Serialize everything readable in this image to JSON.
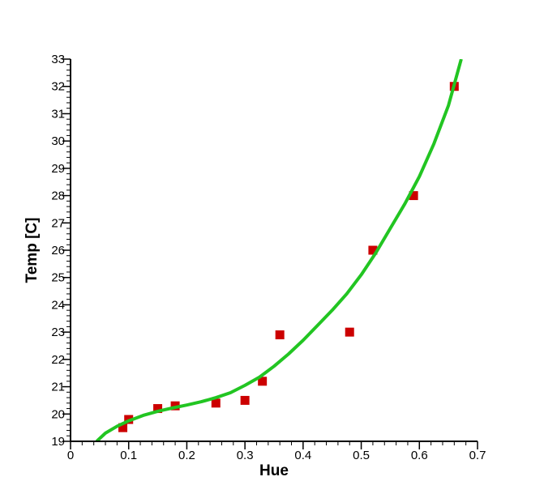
{
  "chart_data": {
    "type": "scatter",
    "xlabel": "Hue",
    "ylabel": "Temp [C]",
    "xlim": [
      0,
      0.7
    ],
    "ylim": [
      19,
      33
    ],
    "xticks": [
      "0",
      "0.1",
      "0.2",
      "0.3",
      "0.4",
      "0.5",
      "0.6",
      "0.7"
    ],
    "yticks": [
      "19",
      "20",
      "21",
      "22",
      "23",
      "24",
      "25",
      "26",
      "27",
      "28",
      "29",
      "30",
      "31",
      "32",
      "33"
    ],
    "grid": false,
    "series": [
      {
        "type": "scatter",
        "marker": "square",
        "color": "#cc0000",
        "points": [
          {
            "x": 0.09,
            "y": 19.5
          },
          {
            "x": 0.1,
            "y": 19.8
          },
          {
            "x": 0.15,
            "y": 20.2
          },
          {
            "x": 0.18,
            "y": 20.3
          },
          {
            "x": 0.25,
            "y": 20.4
          },
          {
            "x": 0.3,
            "y": 20.5
          },
          {
            "x": 0.33,
            "y": 21.2
          },
          {
            "x": 0.36,
            "y": 22.9
          },
          {
            "x": 0.48,
            "y": 23.0
          },
          {
            "x": 0.52,
            "y": 26.0
          },
          {
            "x": 0.59,
            "y": 28.0
          },
          {
            "x": 0.66,
            "y": 32.0
          }
        ]
      },
      {
        "type": "line",
        "color": "#22c522",
        "points": [
          {
            "x": 0.045,
            "y": 19.0
          },
          {
            "x": 0.06,
            "y": 19.3
          },
          {
            "x": 0.08,
            "y": 19.55
          },
          {
            "x": 0.1,
            "y": 19.75
          },
          {
            "x": 0.125,
            "y": 19.95
          },
          {
            "x": 0.15,
            "y": 20.1
          },
          {
            "x": 0.175,
            "y": 20.22
          },
          {
            "x": 0.2,
            "y": 20.33
          },
          {
            "x": 0.225,
            "y": 20.45
          },
          {
            "x": 0.25,
            "y": 20.6
          },
          {
            "x": 0.275,
            "y": 20.78
          },
          {
            "x": 0.3,
            "y": 21.05
          },
          {
            "x": 0.325,
            "y": 21.35
          },
          {
            "x": 0.35,
            "y": 21.75
          },
          {
            "x": 0.375,
            "y": 22.2
          },
          {
            "x": 0.4,
            "y": 22.7
          },
          {
            "x": 0.425,
            "y": 23.25
          },
          {
            "x": 0.45,
            "y": 23.8
          },
          {
            "x": 0.475,
            "y": 24.4
          },
          {
            "x": 0.5,
            "y": 25.1
          },
          {
            "x": 0.525,
            "y": 25.9
          },
          {
            "x": 0.55,
            "y": 26.8
          },
          {
            "x": 0.575,
            "y": 27.7
          },
          {
            "x": 0.6,
            "y": 28.7
          },
          {
            "x": 0.625,
            "y": 29.9
          },
          {
            "x": 0.65,
            "y": 31.3
          },
          {
            "x": 0.672,
            "y": 33.0
          }
        ]
      }
    ]
  }
}
